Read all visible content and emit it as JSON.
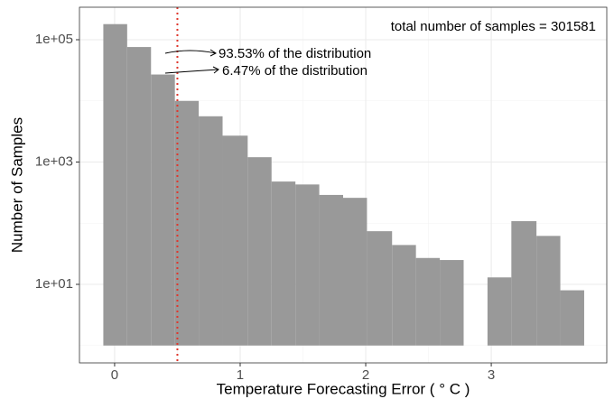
{
  "chart_data": {
    "type": "histogram",
    "x_label": "Temperature Forecasting Error ( ° C )",
    "y_label": "Number of Samples",
    "bins": [
      -0.09,
      0.1,
      0.29,
      0.48,
      0.67,
      0.86,
      1.06,
      1.25,
      1.44,
      1.63,
      1.82,
      2.01,
      2.21,
      2.4,
      2.59,
      2.78,
      2.97,
      3.16,
      3.36,
      3.55,
      3.74
    ],
    "values": [
      180000,
      76000,
      27000,
      10000,
      5600,
      2700,
      1200,
      480,
      430,
      290,
      260,
      74,
      44,
      27,
      25,
      0,
      13,
      108,
      62,
      8
    ],
    "color": "#999999",
    "log_y": true,
    "grid": true,
    "xlim": [
      -0.28,
      3.92
    ],
    "xticks": [
      0,
      1,
      2,
      3
    ],
    "ylim": [
      0.52,
      340000
    ],
    "yticks": [
      {
        "value": 10,
        "label": "1e+01"
      },
      {
        "value": 1000,
        "label": "1e+03"
      },
      {
        "value": 100000,
        "label": "1e+05"
      }
    ],
    "vline": {
      "value": 0.5,
      "color": "#e0362c"
    },
    "annotations": [
      "total number of samples = 301581",
      "93.53% of the distribution",
      "6.47% of the distribution"
    ]
  }
}
